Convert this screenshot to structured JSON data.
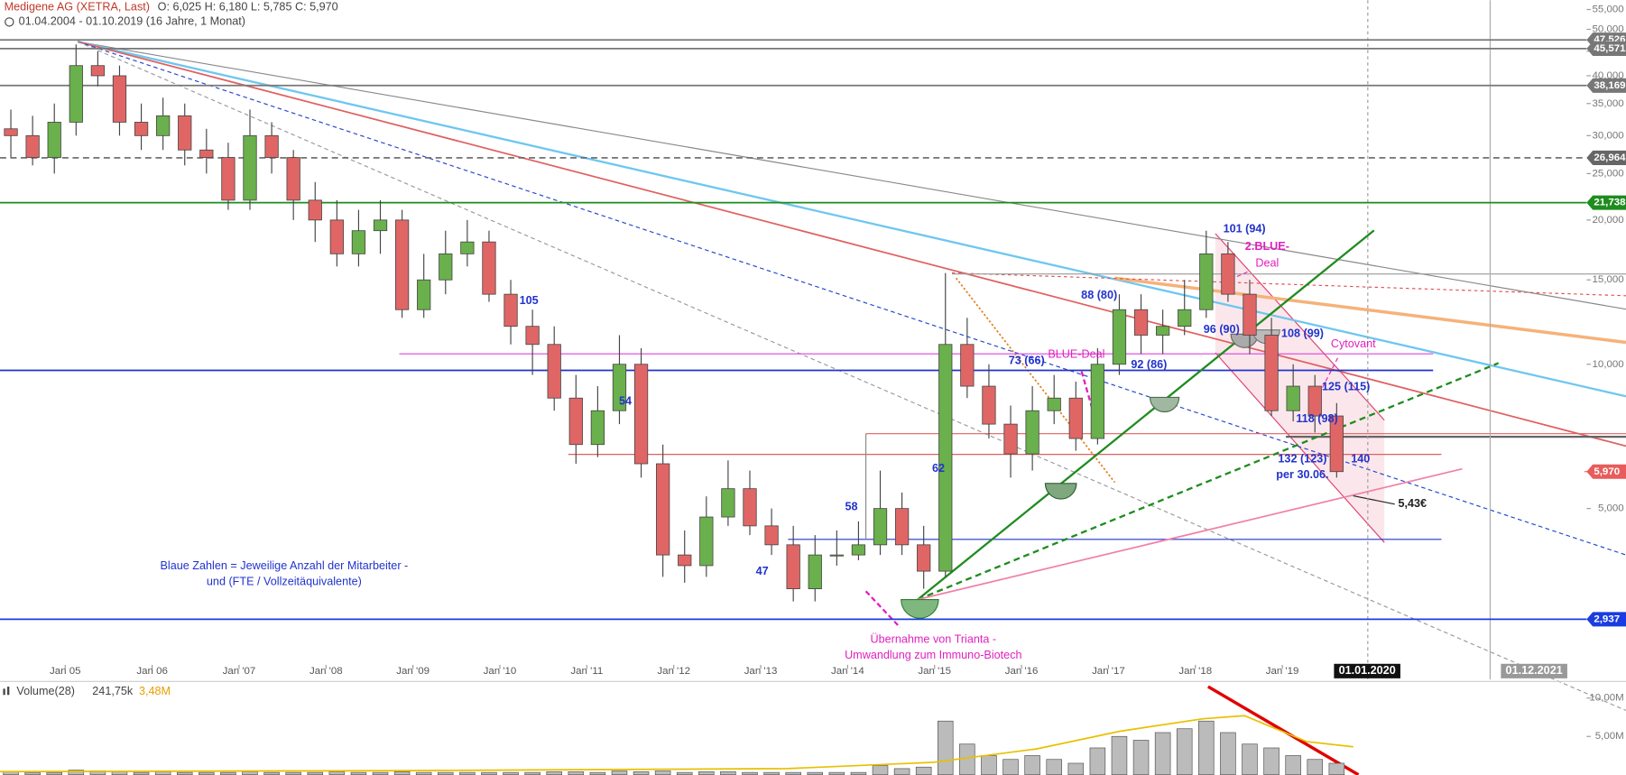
{
  "header": {
    "title": "Medigene AG (XETRA, Last)",
    "ohlc": "O: 6,025  H: 6,180  L: 5,785  C: 5,970",
    "range": "01.04.2004 - 01.10.2019  (16 Jahre, 1 Monat)"
  },
  "chart_data": [
    {
      "type": "candlestick",
      "log_scale": true,
      "up_color": "#6ab04c",
      "down_color": "#e06666",
      "x": [
        2004.25,
        2004.5,
        2004.75,
        2005,
        2005.25,
        2005.5,
        2005.75,
        2006,
        2006.25,
        2006.5,
        2006.75,
        2007,
        2007.25,
        2007.5,
        2007.75,
        2008,
        2008.25,
        2008.5,
        2008.75,
        2009,
        2009.25,
        2009.5,
        2009.75,
        2010,
        2010.25,
        2010.5,
        2010.75,
        2011,
        2011.25,
        2011.5,
        2011.75,
        2012,
        2012.25,
        2012.5,
        2012.75,
        2013,
        2013.25,
        2013.5,
        2013.75,
        2014,
        2014.25,
        2014.5,
        2014.75,
        2015,
        2015.25,
        2015.5,
        2015.75,
        2016,
        2016.25,
        2016.5,
        2016.75,
        2017,
        2017.25,
        2017.5,
        2017.75,
        2018,
        2018.25,
        2018.5,
        2018.75,
        2019,
        2019.25,
        2019.5
      ],
      "open": [
        31,
        30,
        27,
        32,
        42,
        40,
        32,
        30,
        33,
        28,
        27,
        22,
        30,
        27,
        22,
        20,
        17,
        19,
        20,
        13,
        15,
        17,
        18,
        14,
        12,
        11,
        8.5,
        6.8,
        8,
        10,
        6.2,
        4.0,
        3.8,
        4.8,
        5.5,
        4.6,
        4.2,
        3.4,
        4.0,
        4.0,
        4.2,
        5.0,
        4.2,
        3.7,
        11,
        9,
        7.5,
        6.5,
        8,
        8.5,
        7,
        10,
        13,
        11.5,
        12,
        13,
        17,
        14,
        11.5,
        8,
        9,
        7.8
      ],
      "high": [
        34,
        33,
        35,
        46.5,
        45,
        42,
        35,
        36,
        35,
        31,
        29,
        34,
        32,
        28,
        24,
        22,
        21,
        22,
        21,
        17,
        19,
        20,
        19,
        15,
        13,
        12,
        9.5,
        9,
        11.5,
        10.8,
        6.8,
        4.5,
        5.3,
        6.3,
        6.0,
        5.0,
        4.6,
        4.4,
        4.5,
        4.7,
        6.0,
        5.4,
        4.6,
        15.5,
        12.5,
        10,
        8.2,
        9,
        9.5,
        9.2,
        10.8,
        14,
        14,
        13,
        15,
        19,
        18,
        15,
        12.5,
        10,
        9.5,
        8.3
      ],
      "low": [
        27,
        26,
        25,
        30,
        38,
        30,
        28,
        28,
        26,
        25,
        21,
        21,
        25,
        20,
        18,
        16,
        16,
        17,
        12.5,
        12.5,
        14,
        16,
        13.5,
        11,
        9.5,
        8,
        6.2,
        6.4,
        7.5,
        5.8,
        3.6,
        3.5,
        3.6,
        4.6,
        4.4,
        4.0,
        3.2,
        3.2,
        3.8,
        3.9,
        4.0,
        4.0,
        3.4,
        3.6,
        8.5,
        7.0,
        5.8,
        6.0,
        7.5,
        6.6,
        6.8,
        9.5,
        10.5,
        10.5,
        11.5,
        12.5,
        13.5,
        10.5,
        7.8,
        7.6,
        7.2,
        5.8
      ],
      "close": [
        30,
        27,
        32,
        42,
        40,
        32,
        30,
        33,
        28,
        27,
        22,
        30,
        27,
        22,
        20,
        17,
        19,
        20,
        13,
        15,
        17,
        18,
        14,
        12,
        11,
        8.5,
        6.8,
        8,
        10,
        6.2,
        4.0,
        3.8,
        4.8,
        5.5,
        4.6,
        4.2,
        3.4,
        4.0,
        4.0,
        4.2,
        5.0,
        4.2,
        3.7,
        11,
        9,
        7.5,
        6.5,
        8,
        8.5,
        7,
        10,
        13,
        11.5,
        12,
        13,
        17,
        14,
        11.5,
        8,
        9,
        7.8,
        5.97
      ],
      "xlim": [
        2004.25,
        2022.5
      ],
      "ylim": [
        2.2,
        57.5
      ],
      "xticks": [
        {
          "value": 2005,
          "label": "Jan 05"
        },
        {
          "value": 2006,
          "label": "Jan 06"
        },
        {
          "value": 2007,
          "label": "Jan '07"
        },
        {
          "value": 2008,
          "label": "Jan '08"
        },
        {
          "value": 2009,
          "label": "Jan '09"
        },
        {
          "value": 2010,
          "label": "Jan '10"
        },
        {
          "value": 2011,
          "label": "Jan '11"
        },
        {
          "value": 2012,
          "label": "Jan '12"
        },
        {
          "value": 2013,
          "label": "Jan '13"
        },
        {
          "value": 2014,
          "label": "Jan '14"
        },
        {
          "value": 2015,
          "label": "Jan '15"
        },
        {
          "value": 2016,
          "label": "Jan '16"
        },
        {
          "value": 2017,
          "label": "Jan '17"
        },
        {
          "value": 2018,
          "label": "Jan '18"
        },
        {
          "value": 2019,
          "label": "Jan '19"
        },
        {
          "value": 2020,
          "label": "01.01.2020"
        },
        {
          "value": 2021.92,
          "label": "01.12.2021"
        }
      ],
      "yticks": [
        {
          "value": 5,
          "label": "5,000"
        },
        {
          "value": 10,
          "label": "10,000"
        },
        {
          "value": 15,
          "label": "15,000"
        },
        {
          "value": 20,
          "label": "20,000"
        },
        {
          "value": 25,
          "label": "25,000"
        },
        {
          "value": 30,
          "label": "30,000"
        },
        {
          "value": 35,
          "label": "35,000"
        },
        {
          "value": 40,
          "label": "40,000"
        },
        {
          "value": 45,
          "label": "45,000"
        },
        {
          "value": 50,
          "label": "50,000"
        },
        {
          "value": 55,
          "label": "55,000"
        }
      ],
      "levels": [
        {
          "value": 47.526,
          "label": "47,526",
          "color": "#777777",
          "line": true
        },
        {
          "value": 45.571,
          "label": "45,571",
          "color": "#777777",
          "line": true
        },
        {
          "value": 38.169,
          "label": "38,169",
          "color": "#777777",
          "line": true
        },
        {
          "value": 26.964,
          "label": "26,964",
          "color": "#666666",
          "line": true,
          "dashed": true
        },
        {
          "value": 21.738,
          "label": "21,738",
          "color": "#1e8c1e",
          "line": true
        },
        {
          "value": 5.97,
          "label": "5,970",
          "color": "#e85c5c",
          "line": false
        },
        {
          "value": 2.937,
          "label": "2,937",
          "color": "#1a3ce0",
          "line": true
        }
      ],
      "annotations": [
        {
          "text": "105",
          "color": "#2233cc"
        },
        {
          "text": "54",
          "color": "#2233cc"
        },
        {
          "text": "47",
          "color": "#2233cc"
        },
        {
          "text": "58",
          "color": "#2233cc"
        },
        {
          "text": "62",
          "color": "#2233cc"
        },
        {
          "text": "73 (66)",
          "color": "#2233cc"
        },
        {
          "text": "88 (80)",
          "color": "#2233cc"
        },
        {
          "text": "92 (86)",
          "color": "#2233cc"
        },
        {
          "text": "101 (94)",
          "color": "#2233cc"
        },
        {
          "text": "96 (90)",
          "color": "#2233cc"
        },
        {
          "text": "108 (99)",
          "color": "#2233cc"
        },
        {
          "text": "125 (115)",
          "color": "#2233cc"
        },
        {
          "text": "118 (98)",
          "color": "#2233cc"
        },
        {
          "text": "132 (123)",
          "color": "#2233cc"
        },
        {
          "text": "per 30.06.",
          "color": "#2233cc"
        },
        {
          "text": "140",
          "color": "#2233cc"
        },
        {
          "text": "Blaue Zahlen = Jeweilige Anzahl der Mitarbeiter -",
          "color": "#2233cc"
        },
        {
          "text": "und (FTE / Vollzeitäquivalente)",
          "color": "#2233cc"
        },
        {
          "text": "BLUE-Deal",
          "color": "#e020c0"
        },
        {
          "text": "2.BLUE-",
          "color": "#e020c0"
        },
        {
          "text": "Deal",
          "color": "#e020c0"
        },
        {
          "text": "Cytovant",
          "color": "#e020c0"
        },
        {
          "text": "Übernahme von Trianta -",
          "color": "#e020c0"
        },
        {
          "text": "Umwandlung zum Immuno-Biotech",
          "color": "#e020c0"
        },
        {
          "text": "5,43€",
          "color": "#222222"
        }
      ]
    },
    {
      "type": "bar",
      "title": "Volume(28)",
      "last": "241,75k",
      "average": "3,48M",
      "color": "#bbbbbb",
      "values": [
        0.4,
        0.3,
        0.3,
        0.6,
        0.5,
        0.4,
        0.3,
        0.4,
        0.3,
        0.3,
        0.3,
        0.4,
        0.3,
        0.3,
        0.3,
        0.4,
        0.3,
        0.3,
        0.4,
        0.3,
        0.3,
        0.3,
        0.3,
        0.3,
        0.3,
        0.4,
        0.4,
        0.3,
        0.5,
        0.4,
        0.5,
        0.3,
        0.4,
        0.4,
        0.3,
        0.3,
        0.3,
        0.3,
        0.3,
        0.3,
        1.2,
        0.8,
        1.0,
        7.0,
        4.0,
        2.5,
        2.0,
        2.5,
        2.0,
        1.5,
        3.5,
        5.0,
        4.5,
        5.5,
        6.0,
        7.0,
        5.5,
        4.0,
        3.5,
        2.5,
        2.0,
        1.5
      ],
      "ylim": [
        0,
        11.76
      ],
      "yticks": [
        {
          "value": 5,
          "label": "5,00M"
        },
        {
          "value": 10,
          "label": "10,00M"
        }
      ]
    }
  ]
}
